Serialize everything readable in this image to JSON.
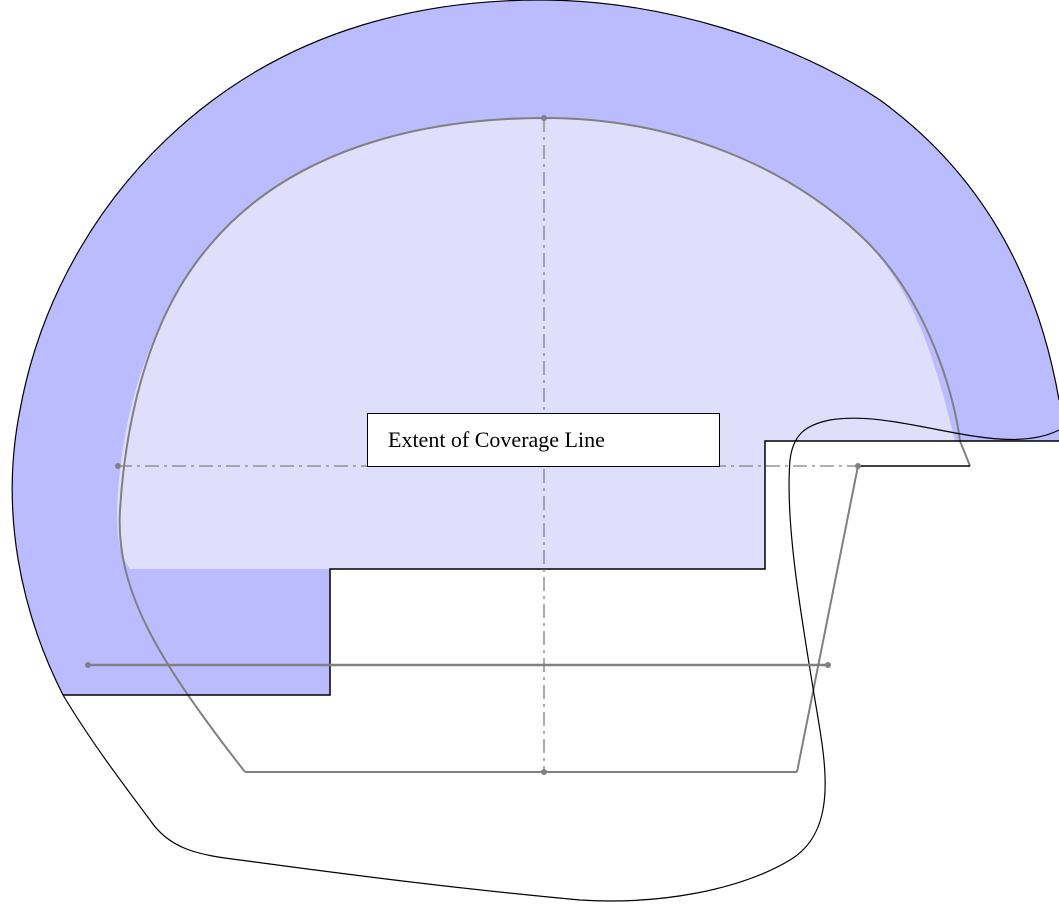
{
  "label": {
    "text": "Extent of Coverage Line"
  },
  "colors": {
    "background": "#ffffff",
    "coverage_fill": "#bbbbff",
    "inner_fill": "#dfdffc",
    "head_outline": "#000000",
    "reference_line": "#808080",
    "label_border": "#000000"
  }
}
